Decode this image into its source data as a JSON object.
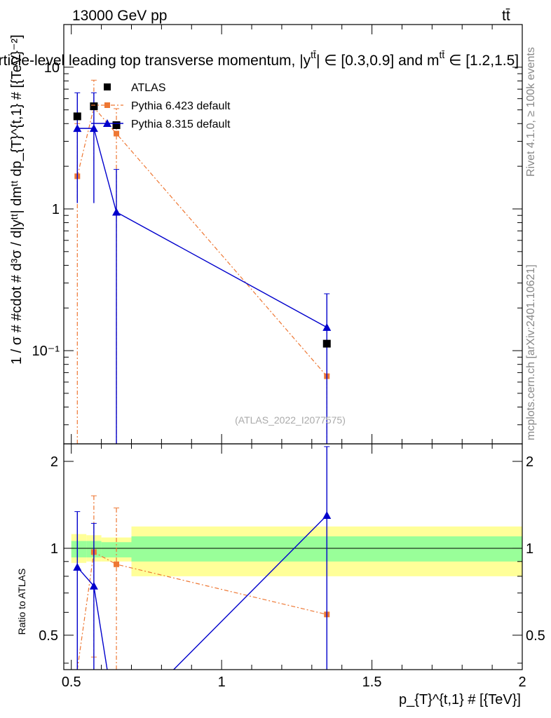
{
  "header": {
    "energy_label": "13000 GeV pp",
    "process_label": "tt̄",
    "title": "Particle-level leading top transverse momentum, |y",
    "title_sup": "tt̄",
    "title_mid": "| ∈ [0.3,0.9] and m",
    "title_sup2": "tt̄",
    "title_end": " ∈ [1.2,1.5]"
  },
  "side_labels": {
    "rivet": "Rivet 4.1.0, ≥ 100k events",
    "mcplots": "mcplots.cern.ch [arXiv:2401.10621]"
  },
  "watermark": "(ATLAS_2022_I2077575)",
  "axes": {
    "ylabel_main": "1 / σ # #cdot # d³σ / d|yᵗᵗ| dmᵗᵗ dp_{T}^{t,1} # [{TeV}⁻²]",
    "ylabel_ratio": "Ratio to ATLAS",
    "xlabel": "p_{T}^{t,1} # [{TeV}]"
  },
  "legend": [
    {
      "label": "ATLAS",
      "color": "#000000",
      "marker": "square"
    },
    {
      "label": "Pythia 6.423 default",
      "color": "#ee7733",
      "marker": "square-small"
    },
    {
      "label": "Pythia 8.315 default",
      "color": "#0000cc",
      "marker": "triangle"
    }
  ],
  "chart_data": {
    "type": "scatter",
    "x_range": [
      0.475,
      2.0
    ],
    "main": {
      "yscale": "log",
      "ylim": [
        0.022,
        20
      ],
      "y_ticks": [
        {
          "value": 0.1,
          "label": "10⁻¹"
        },
        {
          "value": 1,
          "label": "1"
        },
        {
          "value": 10,
          "label": "10"
        }
      ]
    },
    "ratio": {
      "ylim": [
        0.38,
        2.3
      ],
      "y_ticks": [
        {
          "value": 0.5,
          "label": "0.5"
        },
        {
          "value": 1,
          "label": "1"
        },
        {
          "value": 2,
          "label": "2"
        }
      ]
    },
    "x_ticks": [
      {
        "value": 0.5,
        "label": "0.5"
      },
      {
        "value": 1,
        "label": "1"
      },
      {
        "value": 1.5,
        "label": "1.5"
      },
      {
        "value": 2,
        "label": "2"
      }
    ],
    "bins": [
      {
        "xlo": 0.5,
        "xhi": 0.55
      },
      {
        "xlo": 0.55,
        "xhi": 0.6
      },
      {
        "xlo": 0.6,
        "xhi": 0.7
      },
      {
        "xlo": 0.7,
        "xhi": 2.0
      }
    ],
    "atlas": {
      "name": "ATLAS",
      "x": [
        0.52,
        0.575,
        0.65,
        1.35
      ],
      "y": [
        4.5,
        5.3,
        3.9,
        0.112
      ]
    },
    "pythia6": {
      "name": "Pythia 6.423 default",
      "x": [
        0.52,
        0.575,
        0.65,
        1.35
      ],
      "y": [
        1.7,
        5.2,
        3.4,
        0.066
      ],
      "err_lo": [
        1.69,
        3.0,
        3.39,
        0.066
      ],
      "err_hi": [
        2.3,
        2.9,
        1.7,
        0.002
      ],
      "ratio": [
        0.38,
        0.97,
        0.88,
        0.59
      ],
      "ratio_err_lo": [
        0.0,
        0.55,
        0.5,
        0.0
      ],
      "ratio_err_hi": [
        0.0,
        0.55,
        0.5,
        0.0
      ]
    },
    "pythia8": {
      "name": "Pythia 8.315 default",
      "x": [
        0.52,
        0.575,
        0.65,
        1.35
      ],
      "y": [
        3.7,
        3.7,
        0.95,
        0.146
      ],
      "err_lo": [
        2.6,
        2.6,
        0.95,
        0.146
      ],
      "err_hi": [
        2.9,
        2.9,
        0.95,
        0.106
      ],
      "ratio": [
        0.86,
        0.74,
        0.24,
        1.3
      ],
      "ratio_err_lo": [
        0.48,
        0.48,
        0.0,
        1.0
      ],
      "ratio_err_hi": [
        0.48,
        0.48,
        0.0,
        0.95
      ]
    },
    "ratio_bands": {
      "stat_color": "#99ff99",
      "total_color": "#ffff99",
      "stat": [
        {
          "xlo": 0.5,
          "xhi": 0.55,
          "lo": 0.93,
          "hi": 1.06
        },
        {
          "xlo": 0.55,
          "xhi": 0.6,
          "lo": 0.93,
          "hi": 1.06
        },
        {
          "xlo": 0.6,
          "xhi": 0.7,
          "lo": 0.93,
          "hi": 1.05
        },
        {
          "xlo": 0.7,
          "xhi": 2.0,
          "lo": 0.9,
          "hi": 1.1
        }
      ],
      "total": [
        {
          "xlo": 0.5,
          "xhi": 0.55,
          "lo": 0.89,
          "hi": 1.12
        },
        {
          "xlo": 0.55,
          "xhi": 0.6,
          "lo": 0.9,
          "hi": 1.11
        },
        {
          "xlo": 0.6,
          "xhi": 0.7,
          "lo": 0.9,
          "hi": 1.09
        },
        {
          "xlo": 0.7,
          "xhi": 2.0,
          "lo": 0.8,
          "hi": 1.19
        }
      ]
    }
  }
}
